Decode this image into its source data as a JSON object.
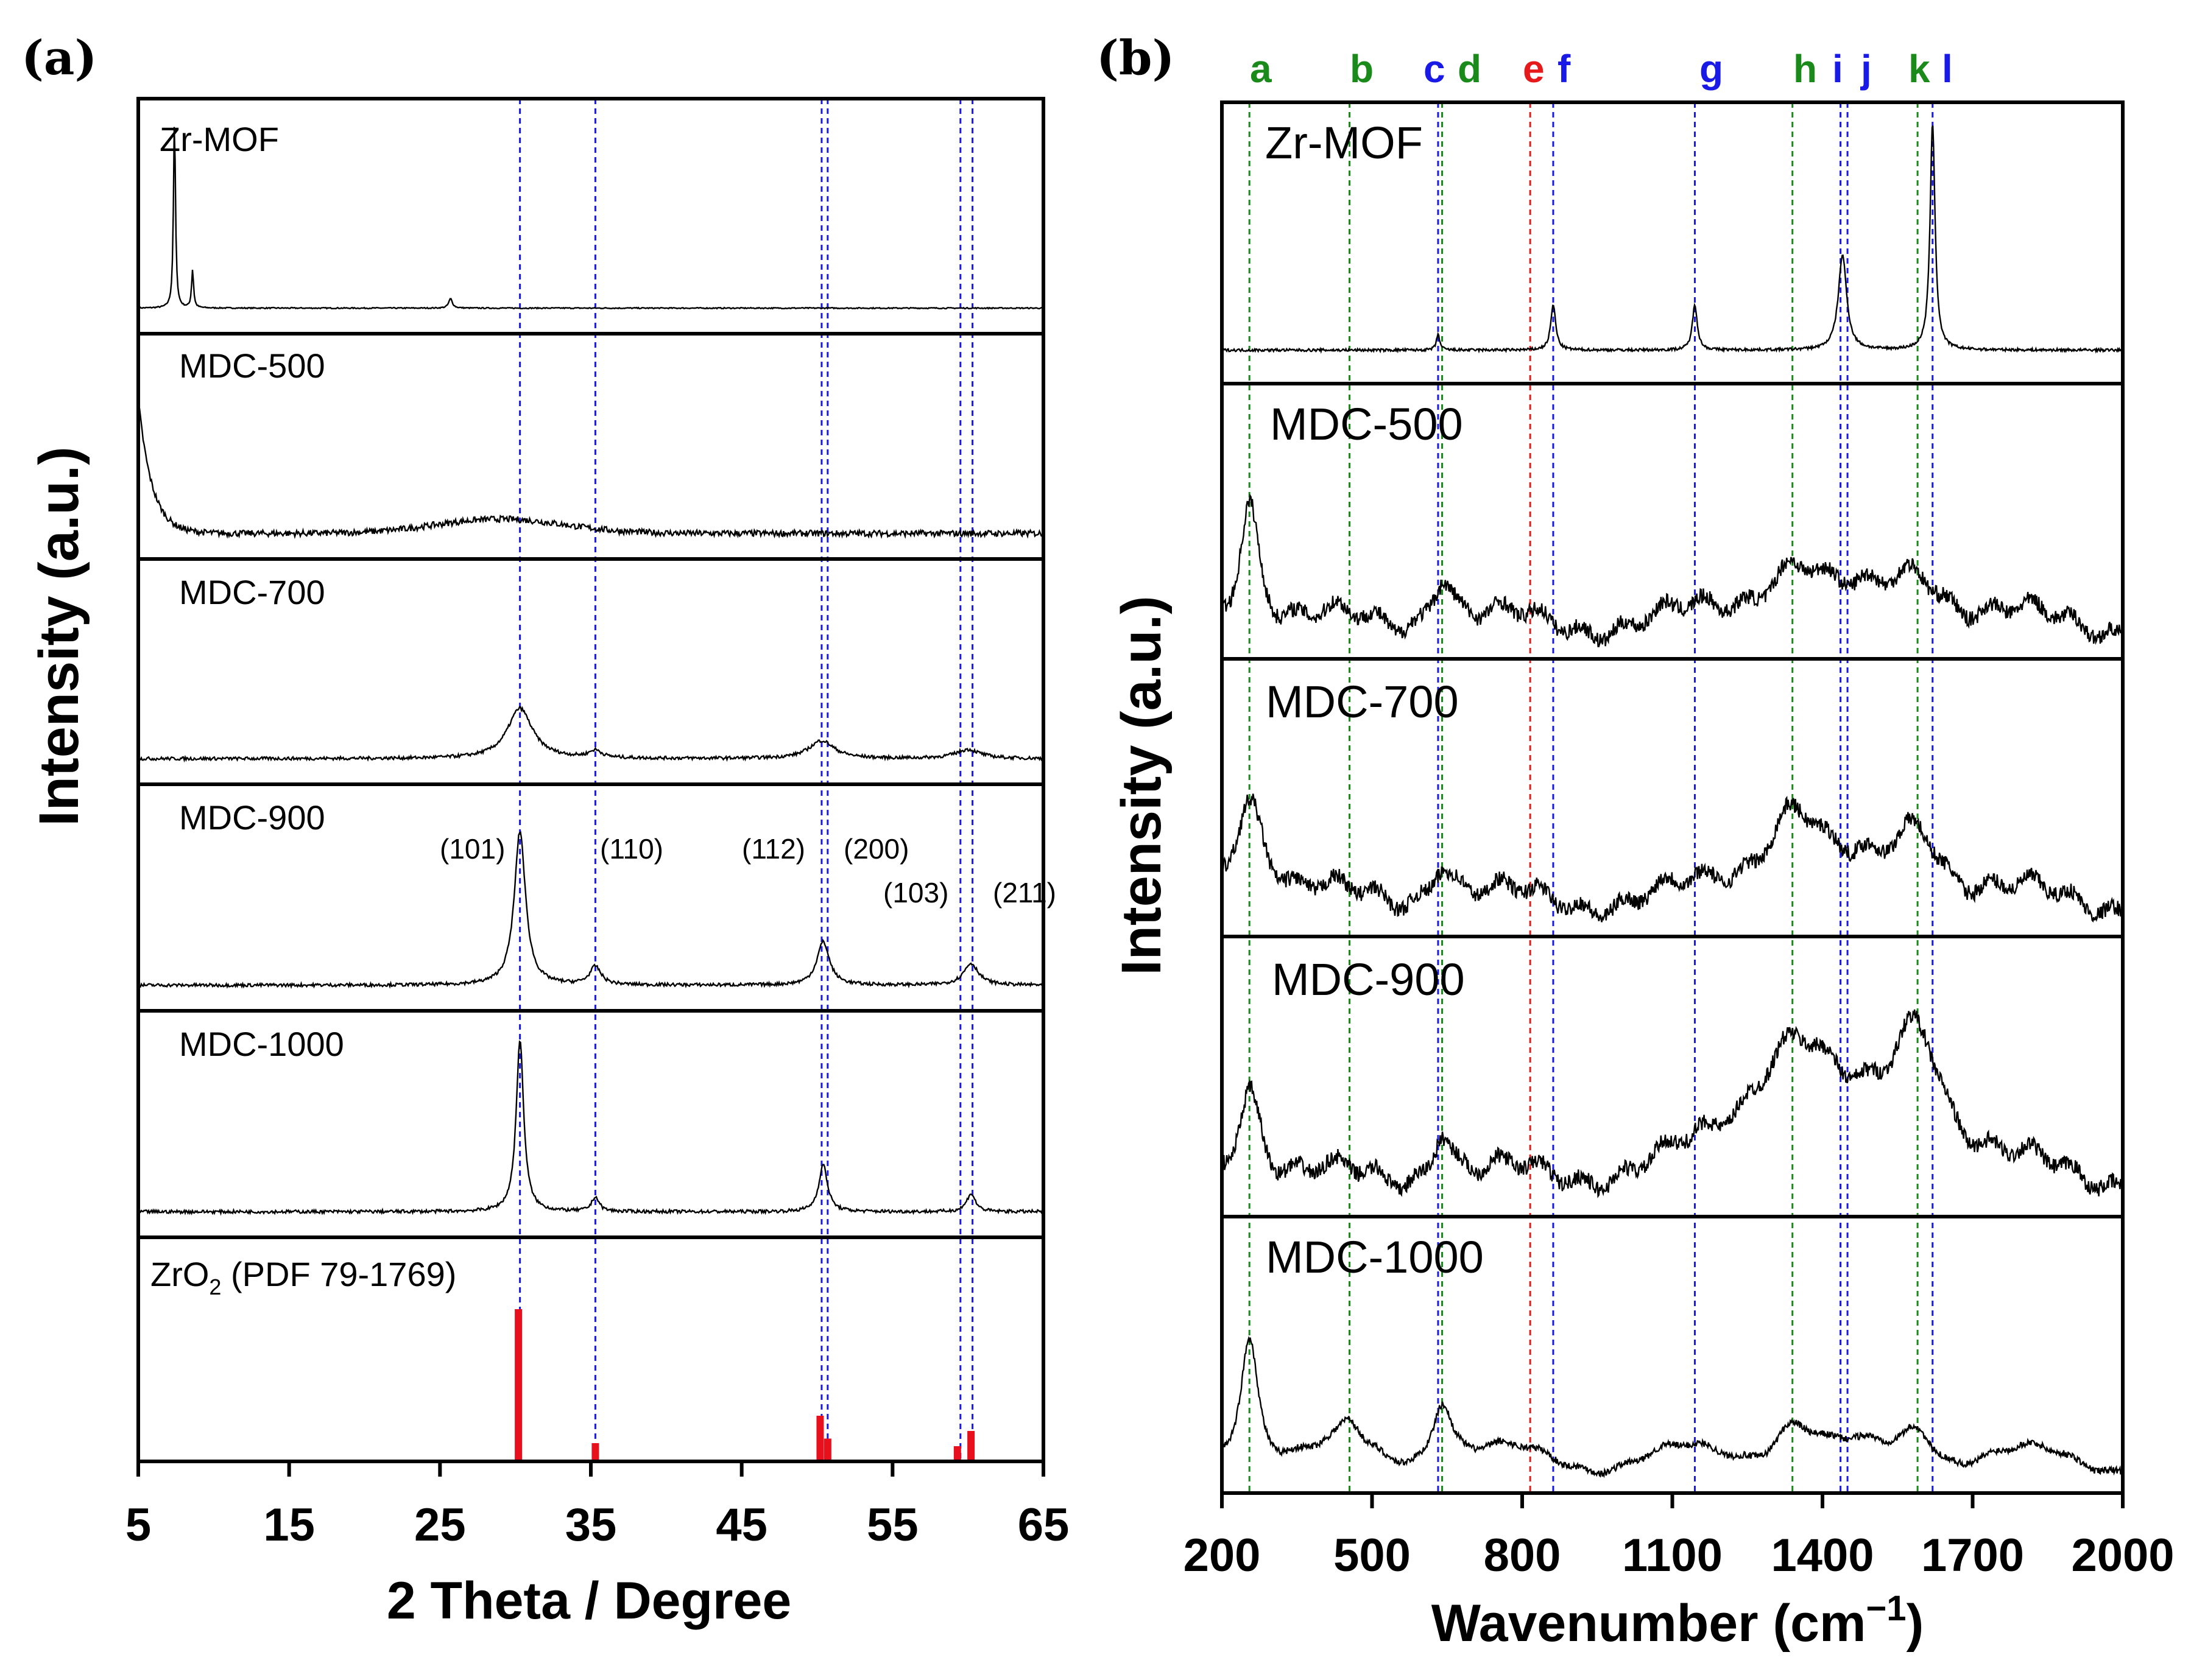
{
  "panel_a": {
    "label": "(a)",
    "xlabel": "2 Theta / Degree",
    "ylabel": "Intensity (a.u.)",
    "xticks": [
      "5",
      "15",
      "25",
      "35",
      "45",
      "55",
      "65"
    ],
    "ref_label_prefix": "ZrO",
    "ref_label_sub": "2",
    "ref_label_suffix": " (PDF 79-1769)"
  },
  "panel_b": {
    "label": "(b)",
    "xlabel_prefix": "Wavenumber (cm",
    "xlabel_sup": "−1",
    "xlabel_suffix": ")",
    "ylabel": "Intensity (a.u.)",
    "xticks": [
      "200",
      "500",
      "800",
      "1100",
      "1400",
      "1700",
      "2000"
    ]
  },
  "colors": {
    "green": "#1a8a1a",
    "blue": "#1a1ae6",
    "red": "#e61a1a",
    "bar_red": "#e8101c",
    "line": "#000000"
  },
  "chart_data": [
    {
      "type": "line",
      "title": "(a)",
      "xlabel": "2 Theta / Degree",
      "ylabel": "Intensity (a.u.)",
      "xlim": [
        5,
        65
      ],
      "xticks": [
        5,
        15,
        25,
        35,
        45,
        55,
        65
      ],
      "stacked_panels": [
        {
          "name": "Zr-MOF",
          "peaks": [
            {
              "x": 7.4,
              "h": 1.0,
              "w": 0.08
            },
            {
              "x": 8.6,
              "h": 0.2,
              "w": 0.08
            },
            {
              "x": 25.7,
              "h": 0.05,
              "w": 0.15
            }
          ]
        },
        {
          "name": "MDC-500",
          "baseline": "decay from 5 deg, broad hump near 30 deg"
        },
        {
          "name": "MDC-700",
          "peaks": [
            {
              "x": 30.3,
              "h": 0.28,
              "w": 1.0
            },
            {
              "x": 35.3,
              "h": 0.04,
              "w": 0.5
            },
            {
              "x": 50.3,
              "h": 0.1,
              "w": 1.0
            },
            {
              "x": 60.0,
              "h": 0.05,
              "w": 1.0
            }
          ]
        },
        {
          "name": "MDC-900",
          "peaks": [
            {
              "x": 30.3,
              "h": 0.85,
              "w": 0.45
            },
            {
              "x": 35.3,
              "h": 0.1,
              "w": 0.45
            },
            {
              "x": 50.4,
              "h": 0.24,
              "w": 0.5
            },
            {
              "x": 60.2,
              "h": 0.12,
              "w": 0.6
            }
          ]
        },
        {
          "name": "MDC-1000",
          "peaks": [
            {
              "x": 30.3,
              "h": 0.95,
              "w": 0.3
            },
            {
              "x": 35.3,
              "h": 0.08,
              "w": 0.3
            },
            {
              "x": 50.4,
              "h": 0.26,
              "w": 0.35
            },
            {
              "x": 60.2,
              "h": 0.1,
              "w": 0.35
            }
          ]
        }
      ],
      "reference_bars": {
        "name": "ZrO2 (PDF 79-1769)",
        "x": [
          30.2,
          35.3,
          50.2,
          50.7,
          59.3,
          60.2
        ],
        "y": [
          100,
          12,
          30,
          15,
          10,
          20
        ]
      },
      "miller_indices": [
        "(101)",
        "(110)",
        "(112)",
        "(200)",
        "(103)",
        "(211)"
      ],
      "reference_lines": [
        30.3,
        35.3,
        50.3,
        50.7,
        59.5,
        60.3
      ]
    },
    {
      "type": "line",
      "title": "(b)",
      "xlabel": "Wavenumber (cm−1)",
      "ylabel": "Intensity (a.u.)",
      "xlim": [
        200,
        2000
      ],
      "xticks": [
        200,
        500,
        800,
        1100,
        1400,
        1700,
        2000
      ],
      "band_markers": [
        {
          "label": "a",
          "x": 255,
          "color": "green"
        },
        {
          "label": "b",
          "x": 455,
          "color": "green"
        },
        {
          "label": "c",
          "x": 632,
          "color": "blue"
        },
        {
          "label": "d",
          "x": 640,
          "color": "green"
        },
        {
          "label": "e",
          "x": 816,
          "color": "red"
        },
        {
          "label": "f",
          "x": 862,
          "color": "blue"
        },
        {
          "label": "g",
          "x": 1145,
          "color": "blue"
        },
        {
          "label": "h",
          "x": 1340,
          "color": "green"
        },
        {
          "label": "i",
          "x": 1436,
          "color": "blue"
        },
        {
          "label": "j",
          "x": 1450,
          "color": "blue"
        },
        {
          "label": "k",
          "x": 1590,
          "color": "green"
        },
        {
          "label": "l",
          "x": 1620,
          "color": "blue"
        }
      ],
      "stacked_panels": [
        {
          "name": "Zr-MOF",
          "peaks": [
            {
              "x": 632,
              "h": 0.07,
              "w": 4
            },
            {
              "x": 862,
              "h": 0.2,
              "w": 6
            },
            {
              "x": 1145,
              "h": 0.2,
              "w": 6
            },
            {
              "x": 1440,
              "h": 0.42,
              "w": 10
            },
            {
              "x": 1620,
              "h": 1.0,
              "w": 6
            }
          ]
        },
        {
          "name": "MDC-500",
          "peaks": [
            {
              "x": 255,
              "h": 0.6,
              "w": 25
            },
            {
              "x": 640,
              "h": 0.25,
              "w": 28
            },
            {
              "x": 1340,
              "h": 0.3,
              "w": 80
            },
            {
              "x": 1590,
              "h": 0.25,
              "w": 70
            }
          ]
        },
        {
          "name": "MDC-700",
          "peaks": [
            {
              "x": 255,
              "h": 0.5,
              "w": 40
            },
            {
              "x": 640,
              "h": 0.2,
              "w": 30
            },
            {
              "x": 1340,
              "h": 0.45,
              "w": 75
            },
            {
              "x": 1590,
              "h": 0.35,
              "w": 60
            }
          ]
        },
        {
          "name": "MDC-900",
          "peaks": [
            {
              "x": 255,
              "h": 0.45,
              "w": 30
            },
            {
              "x": 640,
              "h": 0.25,
              "w": 25
            },
            {
              "x": 1340,
              "h": 0.65,
              "w": 110
            },
            {
              "x": 1590,
              "h": 0.65,
              "w": 65
            }
          ]
        },
        {
          "name": "MDC-1000",
          "peaks": [
            {
              "x": 255,
              "h": 0.6,
              "w": 22
            },
            {
              "x": 455,
              "h": 0.12,
              "w": 25
            },
            {
              "x": 640,
              "h": 0.3,
              "w": 25
            },
            {
              "x": 1340,
              "h": 0.2,
              "w": 50
            },
            {
              "x": 1590,
              "h": 0.17,
              "w": 40
            }
          ]
        }
      ]
    }
  ]
}
